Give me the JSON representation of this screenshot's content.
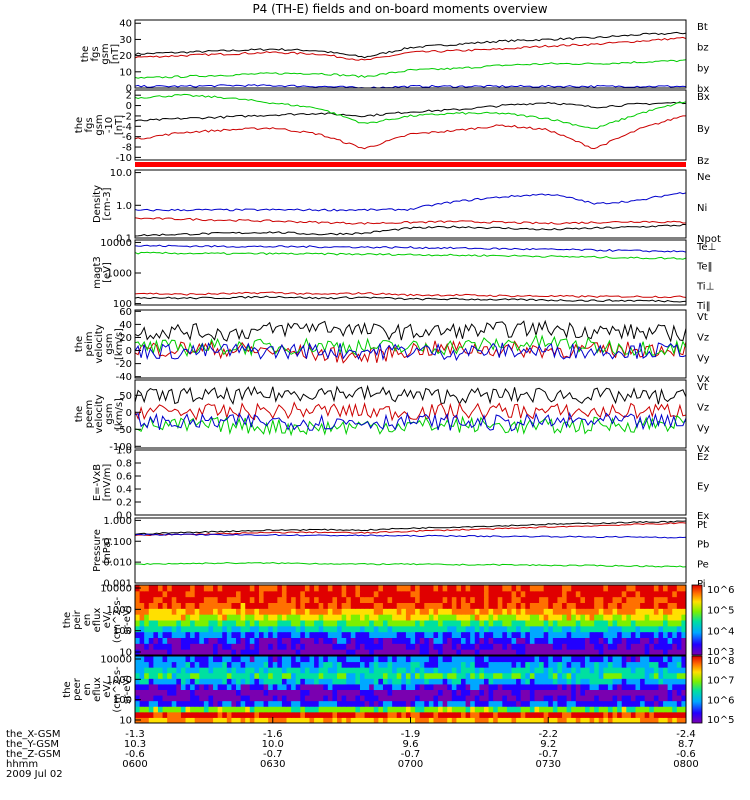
{
  "title": "P4 (TH-E) fields and on-board moments overview",
  "chart_data": [
    {
      "type": "line",
      "ylabel": [
        "the",
        "fgs",
        "gsm",
        "[nT]"
      ],
      "yticks": [
        "0",
        "10",
        "20",
        "30",
        "40"
      ],
      "ylim": [
        0,
        42
      ],
      "series": [
        {
          "name": "Bt",
          "color": "#000000",
          "values": [
            21,
            22,
            23,
            24,
            23,
            19,
            25,
            27,
            29,
            30,
            31,
            33,
            34
          ]
        },
        {
          "name": "bz",
          "color": "#cc0000",
          "values": [
            19,
            20,
            21,
            22,
            21,
            17,
            22,
            23,
            24,
            26,
            27,
            29,
            31
          ]
        },
        {
          "name": "by",
          "color": "#00cc00",
          "values": [
            6,
            7,
            8,
            9,
            9,
            7,
            11,
            12,
            14,
            15,
            15,
            16,
            17
          ]
        },
        {
          "name": "bx",
          "color": "#0000cc",
          "values": [
            1,
            1,
            1.5,
            1.5,
            1,
            0,
            1,
            1,
            1,
            1,
            1,
            1,
            1
          ]
        }
      ]
    },
    {
      "type": "line",
      "ylabel": [
        "the",
        "fgs",
        "gsm",
        "-10",
        "[nT]"
      ],
      "yticks": [
        "-10",
        "-8",
        "-6",
        "-4",
        "-2",
        "0",
        "2"
      ],
      "ylim": [
        -10.5,
        3
      ],
      "series": [
        {
          "name": "Bx",
          "color": "#000000",
          "values": [
            -3,
            -2.5,
            -2.2,
            -1.8,
            -1.5,
            -2,
            -1.2,
            -0.8,
            0,
            0.6,
            -0.3,
            0.3,
            0.6
          ]
        },
        {
          "name": "By",
          "color": "#cc0000",
          "values": [
            -6.5,
            -5.2,
            -4.7,
            -4.3,
            -5.5,
            -8.3,
            -5.5,
            -4.8,
            -3.8,
            -4.7,
            -8.3,
            -4.5,
            -1.8
          ]
        },
        {
          "name": "Bz",
          "color": "#00cc00",
          "values": [
            1.5,
            2,
            1.5,
            0.5,
            -0.5,
            -3.5,
            -2,
            -1.5,
            -1.5,
            -2.5,
            -4.5,
            -1.5,
            0.8
          ]
        }
      ]
    },
    {
      "type": "log-line",
      "ylabel": [
        "Density",
        "[cm-3]"
      ],
      "yticks": [
        "0.1",
        "1.0",
        "10.0"
      ],
      "ylim": [
        0.1,
        12
      ],
      "series": [
        {
          "name": "Ne",
          "color": "#cc0000",
          "values": [
            0.4,
            0.38,
            0.35,
            0.33,
            0.3,
            0.28,
            0.3,
            0.32,
            0.3,
            0.28,
            0.3,
            0.32,
            0.3
          ]
        },
        {
          "name": "Ni",
          "color": "#000000",
          "values": [
            0.12,
            0.13,
            0.14,
            0.15,
            0.13,
            0.14,
            0.2,
            0.22,
            0.2,
            0.18,
            0.2,
            0.22,
            0.25
          ]
        },
        {
          "name": "Npot",
          "color": "#0000cc",
          "values": [
            0.7,
            0.72,
            0.72,
            0.73,
            0.72,
            0.72,
            0.75,
            1.3,
            1.8,
            2.2,
            1.1,
            1.4,
            2.5
          ]
        }
      ]
    },
    {
      "type": "log-line",
      "ylabel": [
        "magt3",
        "[eV]"
      ],
      "yticks": [
        "100",
        "1000",
        "10000"
      ],
      "ylim": [
        90,
        12000
      ],
      "series": [
        {
          "name": "Te⊥",
          "color": "#cc0000",
          "values": [
            220,
            200,
            210,
            230,
            200,
            220,
            190,
            190,
            180,
            175,
            170,
            170,
            165
          ]
        },
        {
          "name": "Te‖",
          "color": "#000000",
          "values": [
            160,
            150,
            155,
            170,
            150,
            160,
            140,
            140,
            135,
            130,
            125,
            125,
            120
          ]
        },
        {
          "name": "Ti⊥",
          "color": "#0000cc",
          "values": [
            7800,
            7600,
            7400,
            7300,
            7200,
            7000,
            6800,
            6500,
            6200,
            5900,
            5600,
            5300,
            5000
          ]
        },
        {
          "name": "Ti‖",
          "color": "#00cc00",
          "values": [
            4500,
            4400,
            4300,
            4300,
            4200,
            4100,
            4000,
            3800,
            3700,
            3500,
            3300,
            3100,
            3000
          ]
        }
      ]
    },
    {
      "type": "line",
      "ylabel": [
        "the",
        "peim",
        "velocity",
        "gsm",
        "[km/s]"
      ],
      "yticks": [
        "-40",
        "-20",
        "0",
        "20",
        "40",
        "60"
      ],
      "ylim": [
        -42,
        62
      ],
      "series": [
        {
          "name": "Vt",
          "color": "#000000",
          "values": [
            28,
            30,
            26,
            32,
            38,
            30,
            28,
            30,
            32,
            34,
            30,
            28,
            26
          ]
        },
        {
          "name": "Vz",
          "color": "#cc0000",
          "values": [
            2,
            3,
            1,
            0,
            -5,
            -10,
            2,
            3,
            2,
            1,
            0,
            2,
            4
          ]
        },
        {
          "name": "Vy",
          "color": "#00cc00",
          "values": [
            5,
            4,
            6,
            5,
            8,
            6,
            4,
            6,
            10,
            12,
            6,
            4,
            5
          ]
        },
        {
          "name": "Vx",
          "color": "#0000cc",
          "values": [
            0,
            -2,
            0,
            -1,
            0,
            -1,
            0,
            -2,
            0,
            -1,
            0,
            0,
            1
          ]
        }
      ]
    },
    {
      "type": "line",
      "ylabel": [
        "the",
        "peem",
        "velocity",
        "gsm",
        "[km/s]"
      ],
      "yticks": [
        "-100",
        "-50",
        "0",
        "50"
      ],
      "ylim": [
        -105,
        95
      ],
      "series": [
        {
          "name": "Vt",
          "color": "#000000",
          "values": [
            45,
            50,
            48,
            52,
            60,
            55,
            50,
            48,
            50,
            52,
            48,
            46,
            44
          ]
        },
        {
          "name": "Vz",
          "color": "#cc0000",
          "values": [
            5,
            2,
            0,
            4,
            6,
            2,
            0,
            3,
            5,
            2,
            0,
            4,
            6
          ]
        },
        {
          "name": "Vy",
          "color": "#00cc00",
          "values": [
            -35,
            -40,
            -38,
            -42,
            -45,
            -40,
            -38,
            -36,
            -40,
            -42,
            -38,
            -35,
            -30
          ]
        },
        {
          "name": "Vx",
          "color": "#0000cc",
          "values": [
            -25,
            -30,
            -28,
            -26,
            -30,
            -28,
            -26,
            -30,
            -32,
            -28,
            -26,
            -30,
            -28
          ]
        }
      ]
    },
    {
      "type": "line",
      "ylabel": [
        "E=-VxB",
        "[mV/m]"
      ],
      "yticks": [
        "0.0",
        "0.2",
        "0.4",
        "0.6",
        "0.8",
        "1.0"
      ],
      "ylim": [
        0,
        1
      ],
      "series": [
        {
          "name": "Ez",
          "color": "#cc0000",
          "values": []
        },
        {
          "name": "Ey",
          "color": "#00cc00",
          "values": []
        },
        {
          "name": "Ex",
          "color": "#0000cc",
          "values": []
        }
      ]
    },
    {
      "type": "log-line",
      "ylabel": [
        "Pressure",
        "[nPa]"
      ],
      "yticks": [
        "0.001",
        "0.010",
        "0.100",
        "1.000"
      ],
      "ylim": [
        0.001,
        1.3
      ],
      "series": [
        {
          "name": "Pt",
          "color": "#000000",
          "values": [
            0.22,
            0.26,
            0.3,
            0.34,
            0.36,
            0.34,
            0.42,
            0.48,
            0.55,
            0.65,
            0.72,
            0.82,
            0.9
          ]
        },
        {
          "name": "Pb",
          "color": "#cc0000",
          "values": [
            0.19,
            0.21,
            0.23,
            0.26,
            0.27,
            0.25,
            0.3,
            0.35,
            0.4,
            0.48,
            0.55,
            0.65,
            0.75
          ]
        },
        {
          "name": "Pe",
          "color": "#00cc00",
          "values": [
            0.008,
            0.0085,
            0.009,
            0.009,
            0.0085,
            0.008,
            0.008,
            0.0075,
            0.0075,
            0.007,
            0.0068,
            0.0065,
            0.006
          ]
        },
        {
          "name": "Pi",
          "color": "#0000cc",
          "values": [
            0.21,
            0.21,
            0.2,
            0.2,
            0.19,
            0.19,
            0.18,
            0.18,
            0.17,
            0.17,
            0.16,
            0.16,
            0.15
          ]
        }
      ]
    },
    {
      "type": "heatmap",
      "ylabel": [
        "the",
        "peir",
        "en",
        "eflux",
        "eV/",
        "(cm^2-s-",
        "sr-eV)"
      ],
      "yticks": [
        "10",
        "100",
        "1000",
        "10000"
      ],
      "colorbar_ticks": [
        "10^3",
        "10^4",
        "10^5",
        "10^6"
      ],
      "rows_low_to_high_energy": [
        3.0,
        3.2,
        3.4,
        3.7,
        4.1,
        4.6,
        5.1,
        5.5,
        5.8,
        6.0,
        6.1,
        6.0
      ]
    },
    {
      "type": "heatmap",
      "ylabel": [
        "the",
        "peer",
        "en",
        "eflux",
        "eV/",
        "(cm^2-s-",
        "sr-eV)"
      ],
      "yticks": [
        "10",
        "100",
        "1000",
        "10000"
      ],
      "colorbar_ticks": [
        "10^5",
        "10^6",
        "10^7",
        "10^8"
      ],
      "rows_low_to_high_energy": [
        7.5,
        8.0,
        7.0,
        6.2,
        5.9,
        5.8,
        6.1,
        6.5,
        6.8,
        6.6,
        6.4,
        6.2
      ]
    }
  ],
  "x_axis": {
    "rows": [
      {
        "name": "the_X-GSM",
        "values": [
          "-1.3",
          "-1.6",
          "-1.9",
          "-2.2",
          "-2.4"
        ]
      },
      {
        "name": "the_Y-GSM",
        "values": [
          "10.3",
          "10.0",
          "9.6",
          "9.2",
          "8.7"
        ]
      },
      {
        "name": "the_Z-GSM",
        "values": [
          "-0.6",
          "-0.7",
          "-0.7",
          "-0.7",
          "-0.6"
        ]
      },
      {
        "name": "hhmm",
        "values": [
          "0600",
          "0630",
          "0700",
          "0730",
          "0800"
        ]
      }
    ],
    "date": "2009 Jul 02"
  },
  "colors": {
    "black": "#000000",
    "red": "#cc0000",
    "green": "#00cc00",
    "blue": "#0000cc"
  }
}
